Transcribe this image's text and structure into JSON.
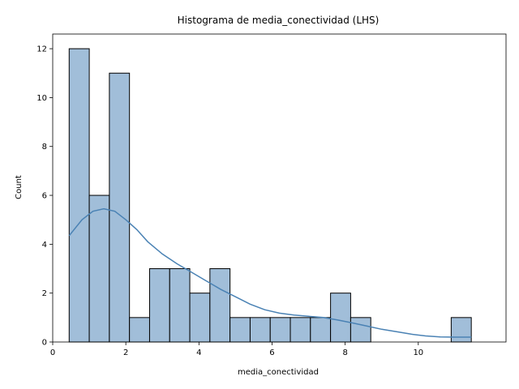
{
  "chart_data": {
    "type": "bar",
    "title": "Histograma de media_conectividad (LHS)",
    "xlabel": "media_conectividad",
    "ylabel": "Count",
    "xlim": [
      0,
      12.4
    ],
    "ylim": [
      0,
      12.6
    ],
    "xticks": [
      0,
      2,
      4,
      6,
      8,
      10
    ],
    "yticks": [
      0,
      2,
      4,
      6,
      8,
      10,
      12
    ],
    "grid": false,
    "bar_color": "#a1bed9",
    "bar_edge_color": "#000000",
    "kde_color": "#4a82b4",
    "bins": [
      {
        "x0": 0.45,
        "x1": 1.0,
        "count": 12
      },
      {
        "x0": 1.0,
        "x1": 1.55,
        "count": 6
      },
      {
        "x0": 1.55,
        "x1": 2.1,
        "count": 11
      },
      {
        "x0": 2.1,
        "x1": 2.65,
        "count": 1
      },
      {
        "x0": 2.65,
        "x1": 3.2,
        "count": 3
      },
      {
        "x0": 3.2,
        "x1": 3.75,
        "count": 3
      },
      {
        "x0": 3.75,
        "x1": 4.3,
        "count": 2
      },
      {
        "x0": 4.3,
        "x1": 4.85,
        "count": 3
      },
      {
        "x0": 4.85,
        "x1": 5.4,
        "count": 1
      },
      {
        "x0": 5.4,
        "x1": 5.95,
        "count": 1
      },
      {
        "x0": 5.95,
        "x1": 6.5,
        "count": 1
      },
      {
        "x0": 6.5,
        "x1": 7.05,
        "count": 1
      },
      {
        "x0": 7.05,
        "x1": 7.6,
        "count": 1
      },
      {
        "x0": 7.6,
        "x1": 8.15,
        "count": 2
      },
      {
        "x0": 8.15,
        "x1": 8.7,
        "count": 1
      },
      {
        "x0": 8.7,
        "x1": 9.25,
        "count": 0
      },
      {
        "x0": 9.25,
        "x1": 9.8,
        "count": 0
      },
      {
        "x0": 9.8,
        "x1": 10.35,
        "count": 0
      },
      {
        "x0": 10.35,
        "x1": 10.9,
        "count": 0
      },
      {
        "x0": 10.9,
        "x1": 11.45,
        "count": 1
      }
    ],
    "kde": [
      [
        0.45,
        4.35
      ],
      [
        0.8,
        5.0
      ],
      [
        1.1,
        5.35
      ],
      [
        1.4,
        5.45
      ],
      [
        1.7,
        5.35
      ],
      [
        2.0,
        5.0
      ],
      [
        2.3,
        4.6
      ],
      [
        2.6,
        4.1
      ],
      [
        3.0,
        3.6
      ],
      [
        3.4,
        3.2
      ],
      [
        3.8,
        2.85
      ],
      [
        4.2,
        2.5
      ],
      [
        4.6,
        2.15
      ],
      [
        5.0,
        1.85
      ],
      [
        5.4,
        1.55
      ],
      [
        5.8,
        1.32
      ],
      [
        6.2,
        1.18
      ],
      [
        6.6,
        1.1
      ],
      [
        7.0,
        1.05
      ],
      [
        7.4,
        1.0
      ],
      [
        7.8,
        0.9
      ],
      [
        8.2,
        0.78
      ],
      [
        8.6,
        0.65
      ],
      [
        9.0,
        0.52
      ],
      [
        9.4,
        0.42
      ],
      [
        9.8,
        0.32
      ],
      [
        10.2,
        0.25
      ],
      [
        10.6,
        0.21
      ],
      [
        11.0,
        0.2
      ],
      [
        11.45,
        0.2
      ]
    ]
  }
}
